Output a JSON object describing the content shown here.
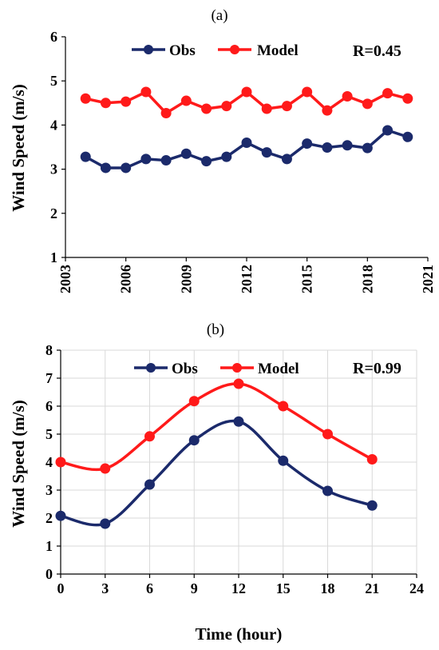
{
  "colors": {
    "obs": "#1b2a6b",
    "model": "#ff1a1a"
  },
  "chart_data": [
    {
      "panel": "(a)",
      "type": "line",
      "smooth": false,
      "ylabel": "Wind Speed (m/s)",
      "xlabel": "",
      "xlim": [
        2003,
        2021
      ],
      "xticks": [
        2003,
        2006,
        2009,
        2012,
        2015,
        2018,
        2021
      ],
      "xtick_rotation": "vertical",
      "ylim": [
        1,
        6
      ],
      "yticks": [
        1,
        2,
        3,
        4,
        5,
        6
      ],
      "grid": false,
      "legend": "top",
      "annotation": "R=0.45",
      "x": [
        2004,
        2005,
        2006,
        2007,
        2008,
        2009,
        2010,
        2011,
        2012,
        2013,
        2014,
        2015,
        2016,
        2017,
        2018,
        2019,
        2020
      ],
      "series": [
        {
          "name": "Obs",
          "color_key": "obs",
          "values": [
            3.28,
            3.03,
            3.03,
            3.23,
            3.2,
            3.35,
            3.18,
            3.28,
            3.6,
            3.38,
            3.23,
            3.58,
            3.49,
            3.54,
            3.48,
            3.88,
            3.73
          ]
        },
        {
          "name": "Model",
          "color_key": "model",
          "values": [
            4.6,
            4.5,
            4.53,
            4.75,
            4.27,
            4.55,
            4.37,
            4.43,
            4.75,
            4.37,
            4.43,
            4.75,
            4.33,
            4.65,
            4.48,
            4.72,
            4.6
          ]
        }
      ]
    },
    {
      "panel": "(b)",
      "type": "line",
      "smooth": true,
      "ylabel": "Wind Speed (m/s)",
      "xlabel": "Time (hour)",
      "xlim": [
        0,
        24
      ],
      "xticks": [
        0,
        3,
        6,
        9,
        12,
        15,
        18,
        21,
        24
      ],
      "xtick_rotation": "horizontal",
      "ylim": [
        0,
        8
      ],
      "yticks": [
        0,
        1,
        2,
        3,
        4,
        5,
        6,
        7,
        8
      ],
      "grid": true,
      "legend": "top",
      "annotation": "R=0.99",
      "x": [
        0,
        3,
        6,
        9,
        12,
        15,
        18,
        21
      ],
      "series": [
        {
          "name": "Obs",
          "color_key": "obs",
          "values": [
            2.08,
            1.8,
            3.2,
            4.78,
            5.45,
            4.05,
            2.97,
            2.45
          ]
        },
        {
          "name": "Model",
          "color_key": "model",
          "values": [
            4.0,
            3.77,
            4.92,
            6.18,
            6.8,
            6.0,
            5.0,
            4.1
          ]
        }
      ]
    }
  ]
}
